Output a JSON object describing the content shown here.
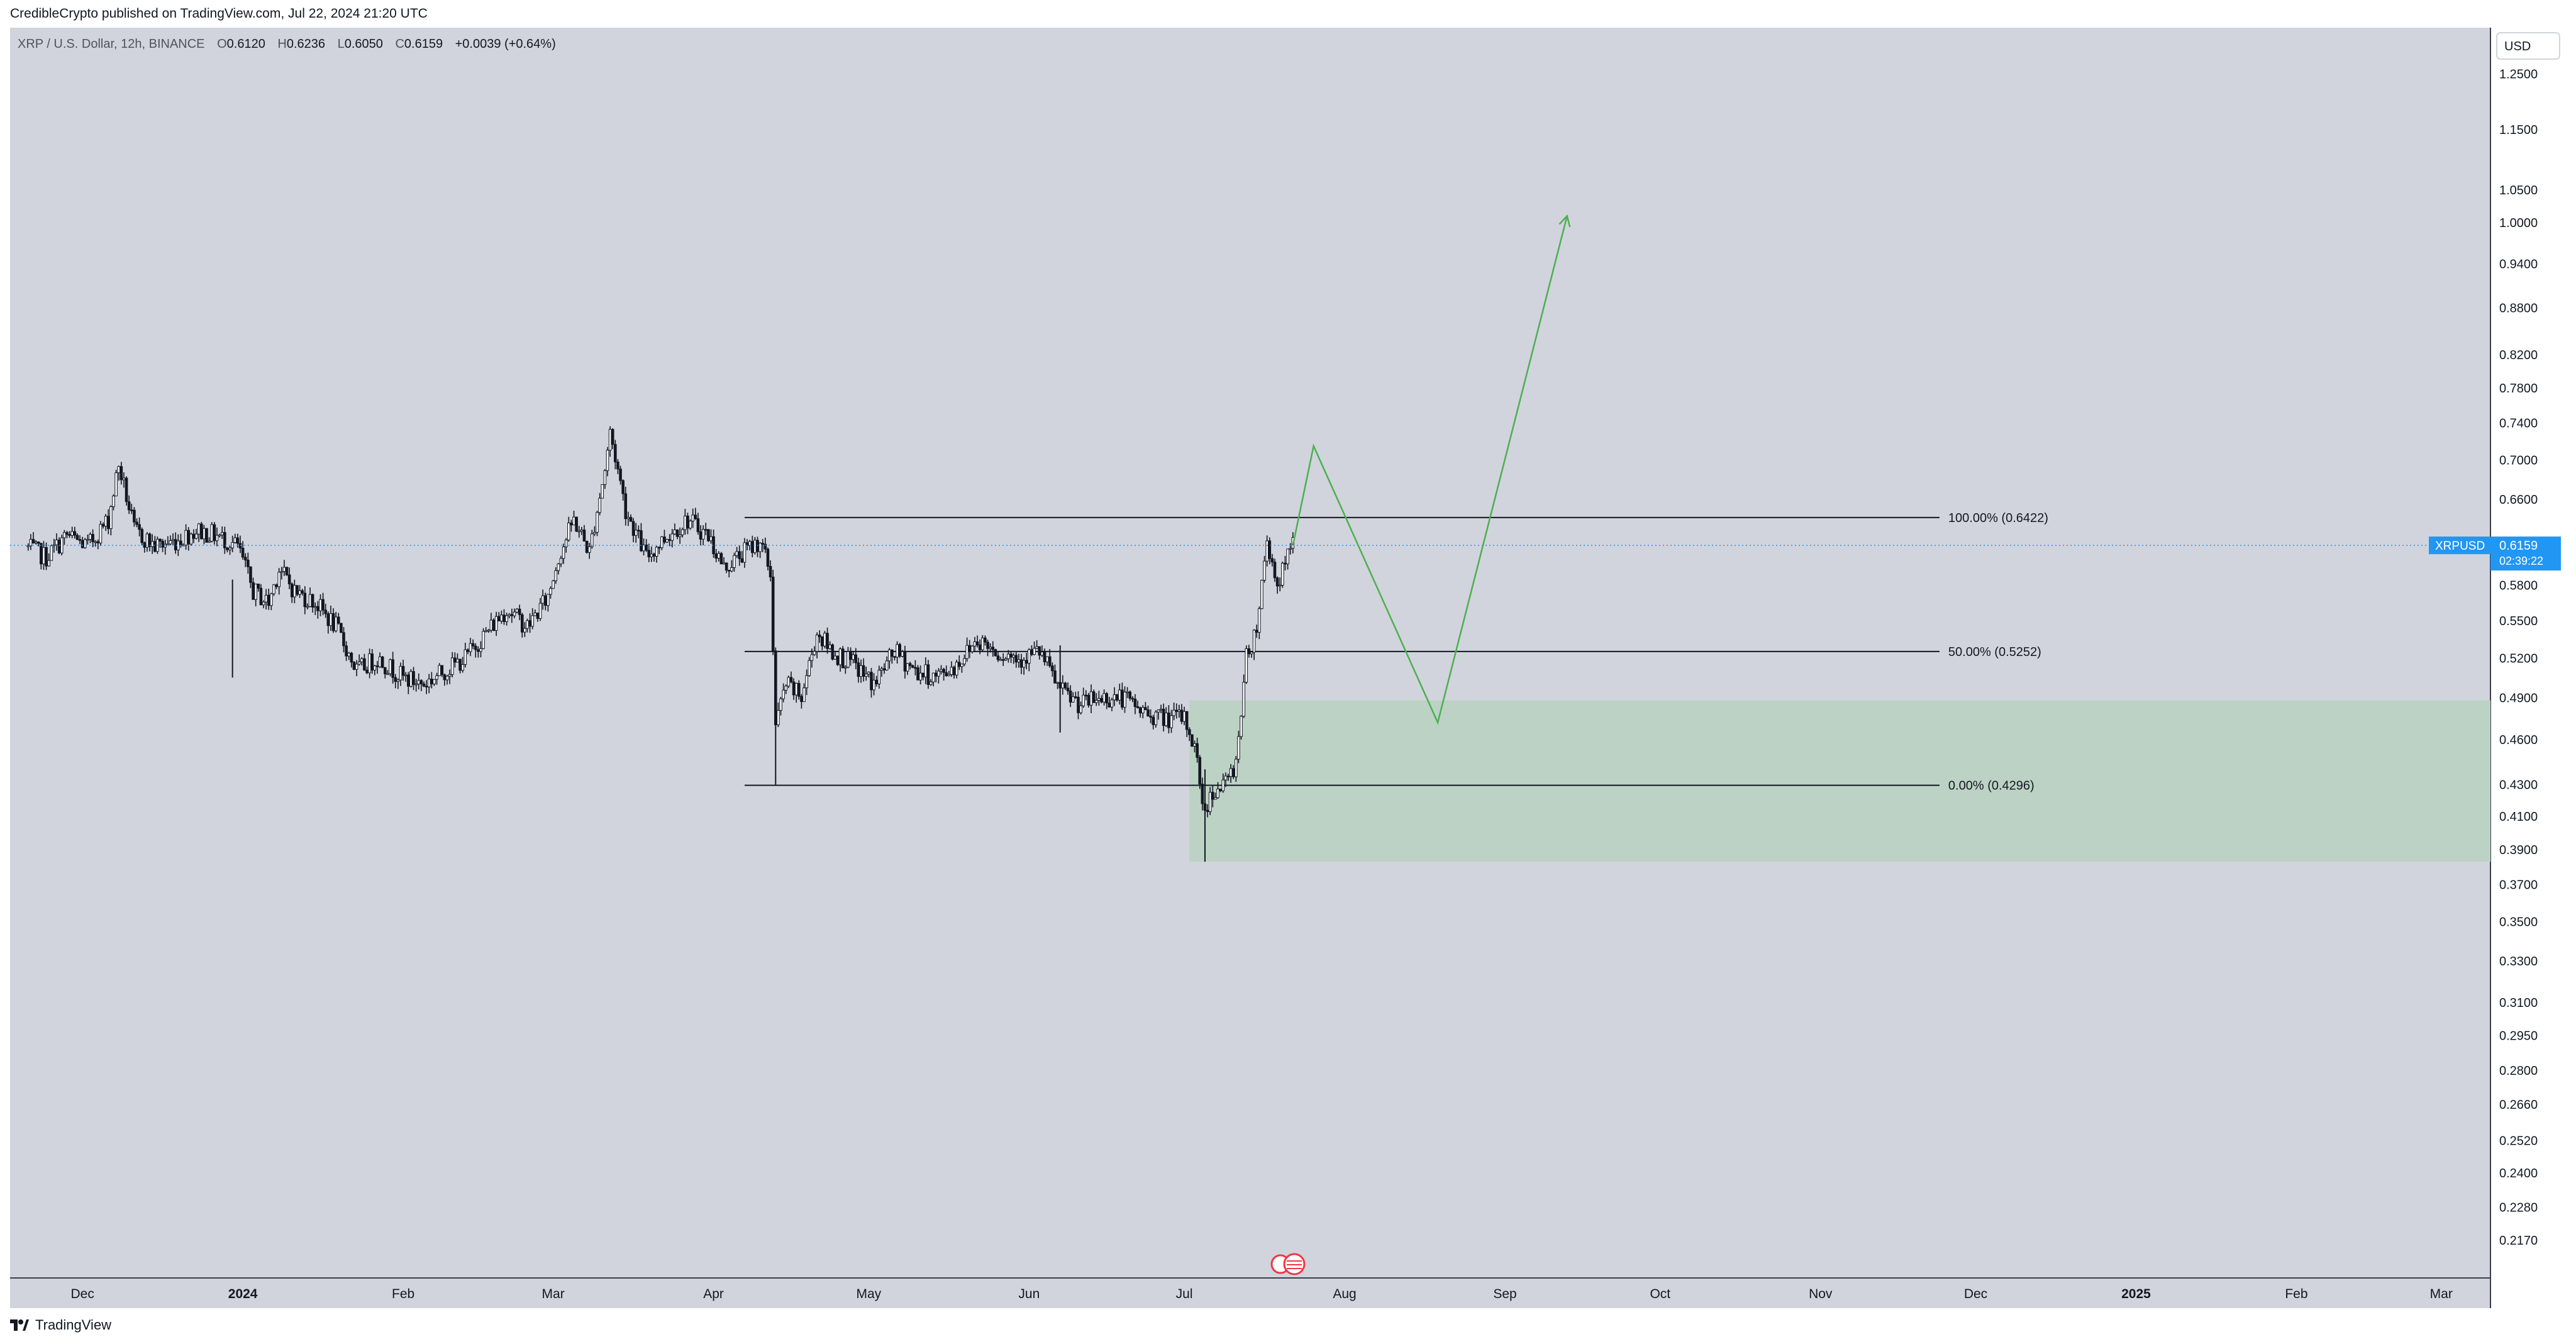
{
  "header": {
    "published": "CredibleCrypto published on TradingView.com, Jul 22, 2024 21:20 UTC"
  },
  "legend": {
    "symbol": "XRP / U.S. Dollar, 12h, BINANCE",
    "open_label": "O",
    "open": "0.6120",
    "high_label": "H",
    "high": "0.6236",
    "low_label": "L",
    "low": "0.6050",
    "close_label": "C",
    "close": "0.6159",
    "change": "+0.0039 (+0.64%)"
  },
  "currency_button": "USD",
  "price_tag": {
    "symbol": "XRPUSD",
    "price": "0.6159",
    "countdown": "02:39:22"
  },
  "footer": {
    "brand": "TradingView"
  },
  "colors": {
    "chart_bg": "#d1d4dc",
    "candle": "#131722",
    "projection": "#4caf50",
    "zone_fill": "#bcd2c4",
    "tag_bg": "#2196f3"
  },
  "chart_data": {
    "type": "candlestick",
    "y_scale": "log",
    "ylim": [
      0.205,
      1.34
    ],
    "y_ticks": [
      "1.2500",
      "1.1500",
      "1.0500",
      "1.0000",
      "0.9400",
      "0.8800",
      "0.8200",
      "0.7800",
      "0.7400",
      "0.7000",
      "0.6600",
      "0.5800",
      "0.5500",
      "0.5200",
      "0.4900",
      "0.4600",
      "0.4300",
      "0.4100",
      "0.3900",
      "0.3700",
      "0.3500",
      "0.3300",
      "0.3100",
      "0.2950",
      "0.2800",
      "0.2660",
      "0.2520",
      "0.2400",
      "0.2280",
      "0.2170"
    ],
    "x_ticks": [
      "Dec",
      "2024",
      "Feb",
      "Mar",
      "Apr",
      "May",
      "Jun",
      "Jul",
      "Aug",
      "Sep",
      "Oct",
      "Nov",
      "Dec",
      "2025",
      "Feb",
      "Mar"
    ],
    "x_tick_dates": [
      "2023-12-01",
      "2024-01-01",
      "2024-02-01",
      "2024-03-01",
      "2024-04-01",
      "2024-05-01",
      "2024-06-01",
      "2024-07-01",
      "2024-08-01",
      "2024-09-01",
      "2024-10-01",
      "2024-11-01",
      "2024-12-01",
      "2025-01-01",
      "2025-02-01",
      "2025-03-01"
    ],
    "price_path": [
      [
        "2023-11-20",
        0.615
      ],
      [
        "2023-11-24",
        0.605
      ],
      [
        "2023-11-28",
        0.625
      ],
      [
        "2023-12-02",
        0.615
      ],
      [
        "2023-12-06",
        0.64
      ],
      [
        "2023-12-08",
        0.695
      ],
      [
        "2023-12-11",
        0.63
      ],
      [
        "2023-12-15",
        0.615
      ],
      [
        "2023-12-19",
        0.62
      ],
      [
        "2023-12-23",
        0.63
      ],
      [
        "2023-12-27",
        0.625
      ],
      [
        "2023-12-31",
        0.615
      ],
      [
        "2024-01-03",
        0.575
      ],
      [
        "2024-01-06",
        0.565
      ],
      [
        "2024-01-08",
        0.595
      ],
      [
        "2024-01-11",
        0.575
      ],
      [
        "2024-01-15",
        0.565
      ],
      [
        "2024-01-19",
        0.545
      ],
      [
        "2024-01-23",
        0.51
      ],
      [
        "2024-01-27",
        0.52
      ],
      [
        "2024-02-01",
        0.505
      ],
      [
        "2024-02-05",
        0.5
      ],
      [
        "2024-02-09",
        0.51
      ],
      [
        "2024-02-13",
        0.52
      ],
      [
        "2024-02-17",
        0.54
      ],
      [
        "2024-02-21",
        0.56
      ],
      [
        "2024-02-25",
        0.545
      ],
      [
        "2024-02-29",
        0.57
      ],
      [
        "2024-03-02",
        0.605
      ],
      [
        "2024-03-05",
        0.64
      ],
      [
        "2024-03-08",
        0.61
      ],
      [
        "2024-03-11",
        0.69
      ],
      [
        "2024-03-12",
        0.73
      ],
      [
        "2024-03-15",
        0.65
      ],
      [
        "2024-03-19",
        0.605
      ],
      [
        "2024-03-23",
        0.625
      ],
      [
        "2024-03-27",
        0.64
      ],
      [
        "2024-03-31",
        0.625
      ],
      [
        "2024-04-03",
        0.595
      ],
      [
        "2024-04-07",
        0.61
      ],
      [
        "2024-04-10",
        0.62
      ],
      [
        "2024-04-12",
        0.59
      ],
      [
        "2024-04-13",
        0.47
      ],
      [
        "2024-04-15",
        0.5
      ],
      [
        "2024-04-18",
        0.49
      ],
      [
        "2024-04-21",
        0.54
      ],
      [
        "2024-04-24",
        0.525
      ],
      [
        "2024-04-28",
        0.515
      ],
      [
        "2024-05-02",
        0.5
      ],
      [
        "2024-05-06",
        0.525
      ],
      [
        "2024-05-10",
        0.51
      ],
      [
        "2024-05-14",
        0.505
      ],
      [
        "2024-05-18",
        0.515
      ],
      [
        "2024-05-22",
        0.535
      ],
      [
        "2024-05-26",
        0.525
      ],
      [
        "2024-05-30",
        0.52
      ],
      [
        "2024-06-03",
        0.525
      ],
      [
        "2024-06-07",
        0.495
      ],
      [
        "2024-06-11",
        0.485
      ],
      [
        "2024-06-15",
        0.49
      ],
      [
        "2024-06-19",
        0.49
      ],
      [
        "2024-06-23",
        0.48
      ],
      [
        "2024-06-27",
        0.475
      ],
      [
        "2024-07-01",
        0.475
      ],
      [
        "2024-07-03",
        0.455
      ],
      [
        "2024-07-05",
        0.41
      ],
      [
        "2024-07-06",
        0.425
      ],
      [
        "2024-07-09",
        0.43
      ],
      [
        "2024-07-11",
        0.445
      ],
      [
        "2024-07-13",
        0.52
      ],
      [
        "2024-07-15",
        0.545
      ],
      [
        "2024-07-17",
        0.62
      ],
      [
        "2024-07-19",
        0.58
      ],
      [
        "2024-07-21",
        0.605
      ],
      [
        "2024-07-22",
        0.6159
      ]
    ],
    "projection": [
      [
        "2024-07-22",
        0.6159
      ],
      [
        "2024-07-26",
        0.715
      ],
      [
        "2024-08-19",
        0.472
      ],
      [
        "2024-09-13",
        1.01
      ]
    ],
    "fib_levels": [
      {
        "label": "100.00% (0.6422)",
        "value": 0.6422
      },
      {
        "label": "50.00% (0.5252)",
        "value": 0.5252
      },
      {
        "label": "0.00% (0.4296)",
        "value": 0.4296
      }
    ],
    "fib_range": [
      "2024-04-07",
      "2024-11-24"
    ],
    "zone": {
      "y_top": 0.488,
      "y_bottom": 0.383,
      "x_start": "2024-07-02"
    },
    "current_price": 0.6159
  }
}
